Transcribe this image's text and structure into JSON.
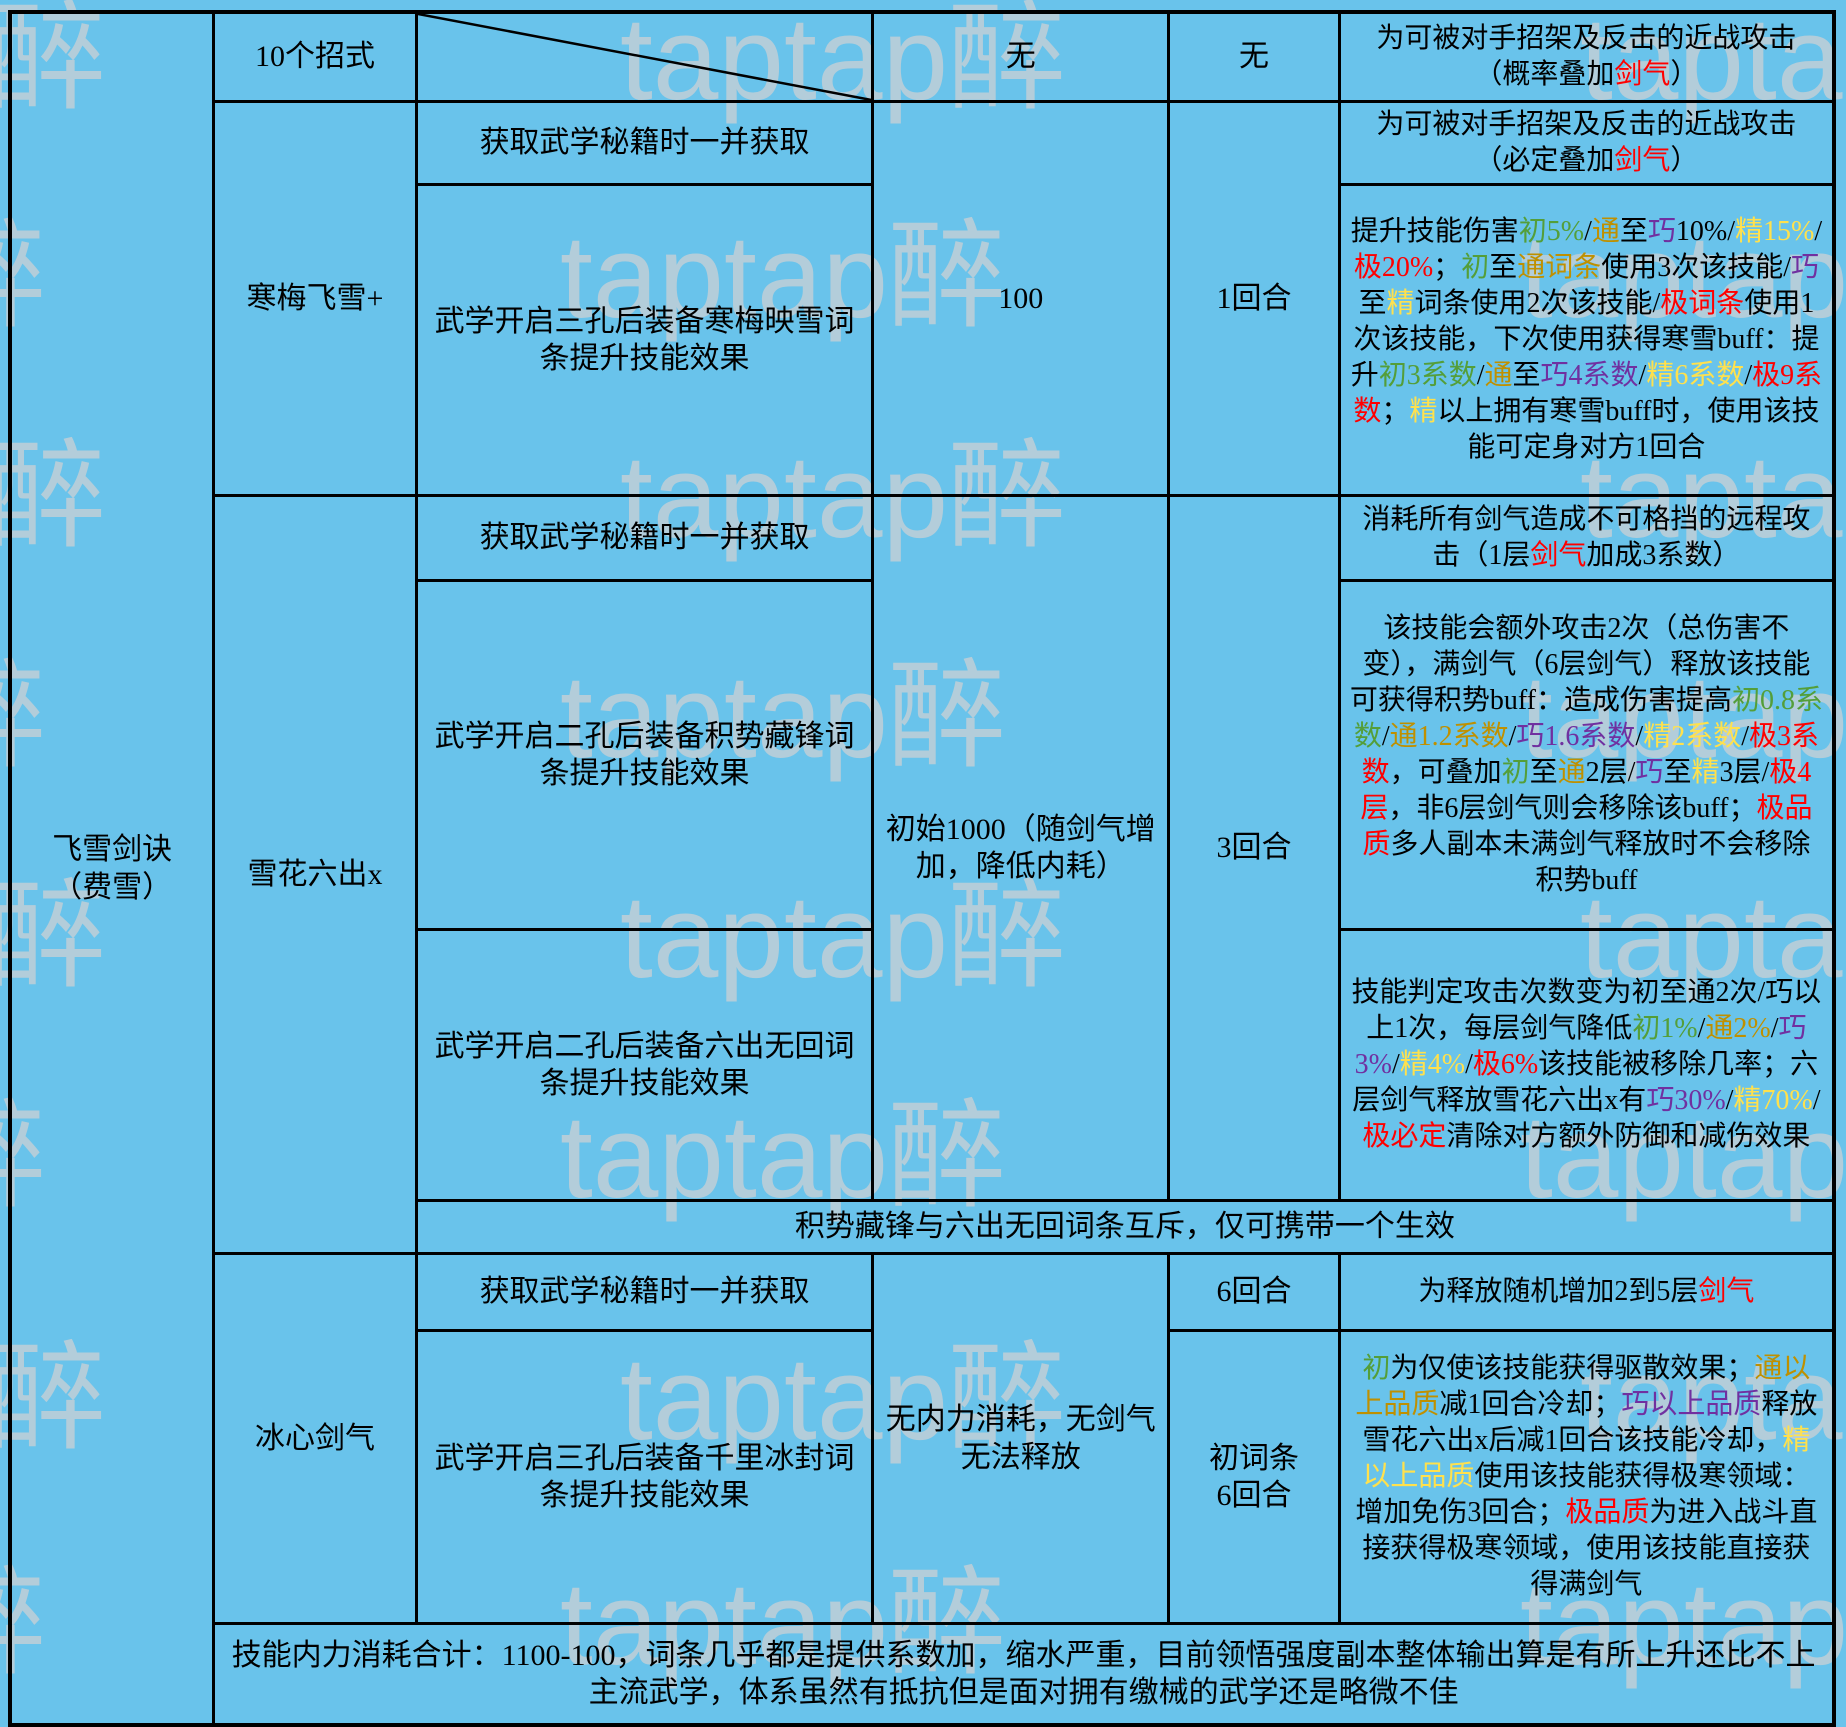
{
  "watermark": {
    "text": "taptap醉"
  },
  "colors": {
    "k": "#000000",
    "g": "#549e39",
    "o": "#bf9000",
    "p": "#7030a0",
    "y": "#ffe14d",
    "r": "#ff0000"
  },
  "cells": {
    "school": "飞雪剑诀\n（费雪）",
    "moves": {
      "skill": "10个招式",
      "cost": "无",
      "cd": "无",
      "effect": [
        [
          "为可被对手招架及反击的近战攻击（概率叠加",
          "k"
        ],
        [
          "剑气",
          "r"
        ],
        [
          "）",
          "k"
        ]
      ]
    },
    "hanmei": {
      "name": "寒梅飞雪+",
      "acq1": "获取武学秘籍时一并获取",
      "acq2": "武学开启三孔后装备寒梅映雪词条提升技能效果",
      "cost": "100",
      "cd": "1回合",
      "effect1": [
        [
          "为可被对手招架及反击的近战攻击（必定叠加",
          "k"
        ],
        [
          "剑气",
          "r"
        ],
        [
          "）",
          "k"
        ]
      ],
      "effect2": [
        [
          "提升技能伤害",
          "k"
        ],
        [
          "初5%",
          "g"
        ],
        [
          "/",
          "k"
        ],
        [
          "通",
          "o"
        ],
        [
          "至",
          "k"
        ],
        [
          "巧",
          "p"
        ],
        [
          "10%/",
          "k"
        ],
        [
          "精15%",
          "y"
        ],
        [
          "/",
          "k"
        ],
        [
          "极20%",
          "r"
        ],
        [
          "；",
          "k"
        ],
        [
          "初",
          "g"
        ],
        [
          "至",
          "k"
        ],
        [
          "通词条",
          "o"
        ],
        [
          "使用3次该技能/",
          "k"
        ],
        [
          "巧",
          "p"
        ],
        [
          "至",
          "k"
        ],
        [
          "精",
          "y"
        ],
        [
          "词条使用2次该技能/",
          "k"
        ],
        [
          "极词条",
          "r"
        ],
        [
          "使用1次该技能，下次使用获得寒雪buff：提升",
          "k"
        ],
        [
          "初3系数",
          "g"
        ],
        [
          "/",
          "k"
        ],
        [
          "通",
          "o"
        ],
        [
          "至",
          "k"
        ],
        [
          "巧4系数",
          "p"
        ],
        [
          "/",
          "k"
        ],
        [
          "精6系数",
          "y"
        ],
        [
          "/",
          "k"
        ],
        [
          "极9系数",
          "r"
        ],
        [
          "；",
          "k"
        ],
        [
          "精",
          "y"
        ],
        [
          "以上拥有寒雪buff时，使用该技能可定身对方1回合",
          "k"
        ]
      ]
    },
    "xuehua": {
      "name": "雪花六出x",
      "acq1": "获取武学秘籍时一并获取",
      "acq2": "武学开启二孔后装备积势藏锋词条提升技能效果",
      "acq3": "武学开启二孔后装备六出无回词条提升技能效果",
      "cost": "初始1000（随剑气增加，降低内耗）",
      "cd": "3回合",
      "effect1": [
        [
          "消耗所有剑气造成不可格挡的远程攻击（1层",
          "k"
        ],
        [
          "剑气",
          "r"
        ],
        [
          "加成3系数）",
          "k"
        ]
      ],
      "effect2": [
        [
          "该技能会额外攻击2次（总伤害不变），满剑气（6层剑气）释放该技能可获得积势buff：造成伤害提高",
          "k"
        ],
        [
          "初0.8系数",
          "g"
        ],
        [
          "/",
          "k"
        ],
        [
          "通1.2系数",
          "o"
        ],
        [
          "/",
          "k"
        ],
        [
          "巧1.6系数",
          "p"
        ],
        [
          "/",
          "k"
        ],
        [
          "精2系数",
          "y"
        ],
        [
          "/",
          "k"
        ],
        [
          "极3系数",
          "r"
        ],
        [
          "，可叠加",
          "k"
        ],
        [
          "初",
          "g"
        ],
        [
          "至",
          "k"
        ],
        [
          "通",
          "o"
        ],
        [
          "2层/",
          "k"
        ],
        [
          "巧",
          "p"
        ],
        [
          "至",
          "k"
        ],
        [
          "精",
          "y"
        ],
        [
          "3层/",
          "k"
        ],
        [
          "极4层",
          "r"
        ],
        [
          "，非6层剑气则会移除该buff；",
          "k"
        ],
        [
          "极品质",
          "r"
        ],
        [
          "多人副本未满剑气释放时不会移除积势buff",
          "k"
        ]
      ],
      "effect3": [
        [
          "技能判定攻击次数变为初至通2次/巧以上1次，每层剑气降低",
          "k"
        ],
        [
          "初1%",
          "g"
        ],
        [
          "/",
          "k"
        ],
        [
          "通2%",
          "o"
        ],
        [
          "/",
          "k"
        ],
        [
          "巧3%",
          "p"
        ],
        [
          "/",
          "k"
        ],
        [
          "精4%",
          "y"
        ],
        [
          "/",
          "k"
        ],
        [
          "极6%",
          "r"
        ],
        [
          "该技能被移除几率；六层剑气释放雪花六出x有",
          "k"
        ],
        [
          "巧30%",
          "p"
        ],
        [
          "/",
          "k"
        ],
        [
          "精70%",
          "y"
        ],
        [
          "/",
          "k"
        ],
        [
          "极必定",
          "r"
        ],
        [
          "清除对方额外防御和减伤效果",
          "k"
        ]
      ],
      "note": "积势藏锋与六出无回词条互斥，仅可携带一个生效"
    },
    "bingxin": {
      "name": "冰心剑气",
      "acq1": "获取武学秘籍时一并获取",
      "acq2": "武学开启三孔后装备千里冰封词条提升技能效果",
      "cost": "无内力消耗，无剑气无法释放",
      "cd1": "6回合",
      "cd2": "初词条\n6回合",
      "effect1": [
        [
          "为释放随机增加2到5层",
          "k"
        ],
        [
          "剑气",
          "r"
        ]
      ],
      "effect2": [
        [
          "初",
          "g"
        ],
        [
          "为仅使该技能获得驱散效果；",
          "k"
        ],
        [
          "通以上品质",
          "o"
        ],
        [
          "减1回合冷却；",
          "k"
        ],
        [
          "巧以上品质",
          "p"
        ],
        [
          "释放雪花六出x后减1回合该技能冷却，",
          "k"
        ],
        [
          "精以上品质",
          "y"
        ],
        [
          "使用该技能获得极寒领域：增加免伤3回合；",
          "k"
        ],
        [
          "极品质",
          "r"
        ],
        [
          "为进入战斗直接获得极寒领域，使用该技能直接获得满剑气",
          "k"
        ]
      ]
    },
    "summary": "技能内力消耗合计：1100-100，词条几乎都是提供系数加，缩水严重，目前领悟强度副本整体输出算是有所上升还比不上主流武学，体系虽然有抵抗但是面对拥有缴械的武学还是略微不佳"
  }
}
